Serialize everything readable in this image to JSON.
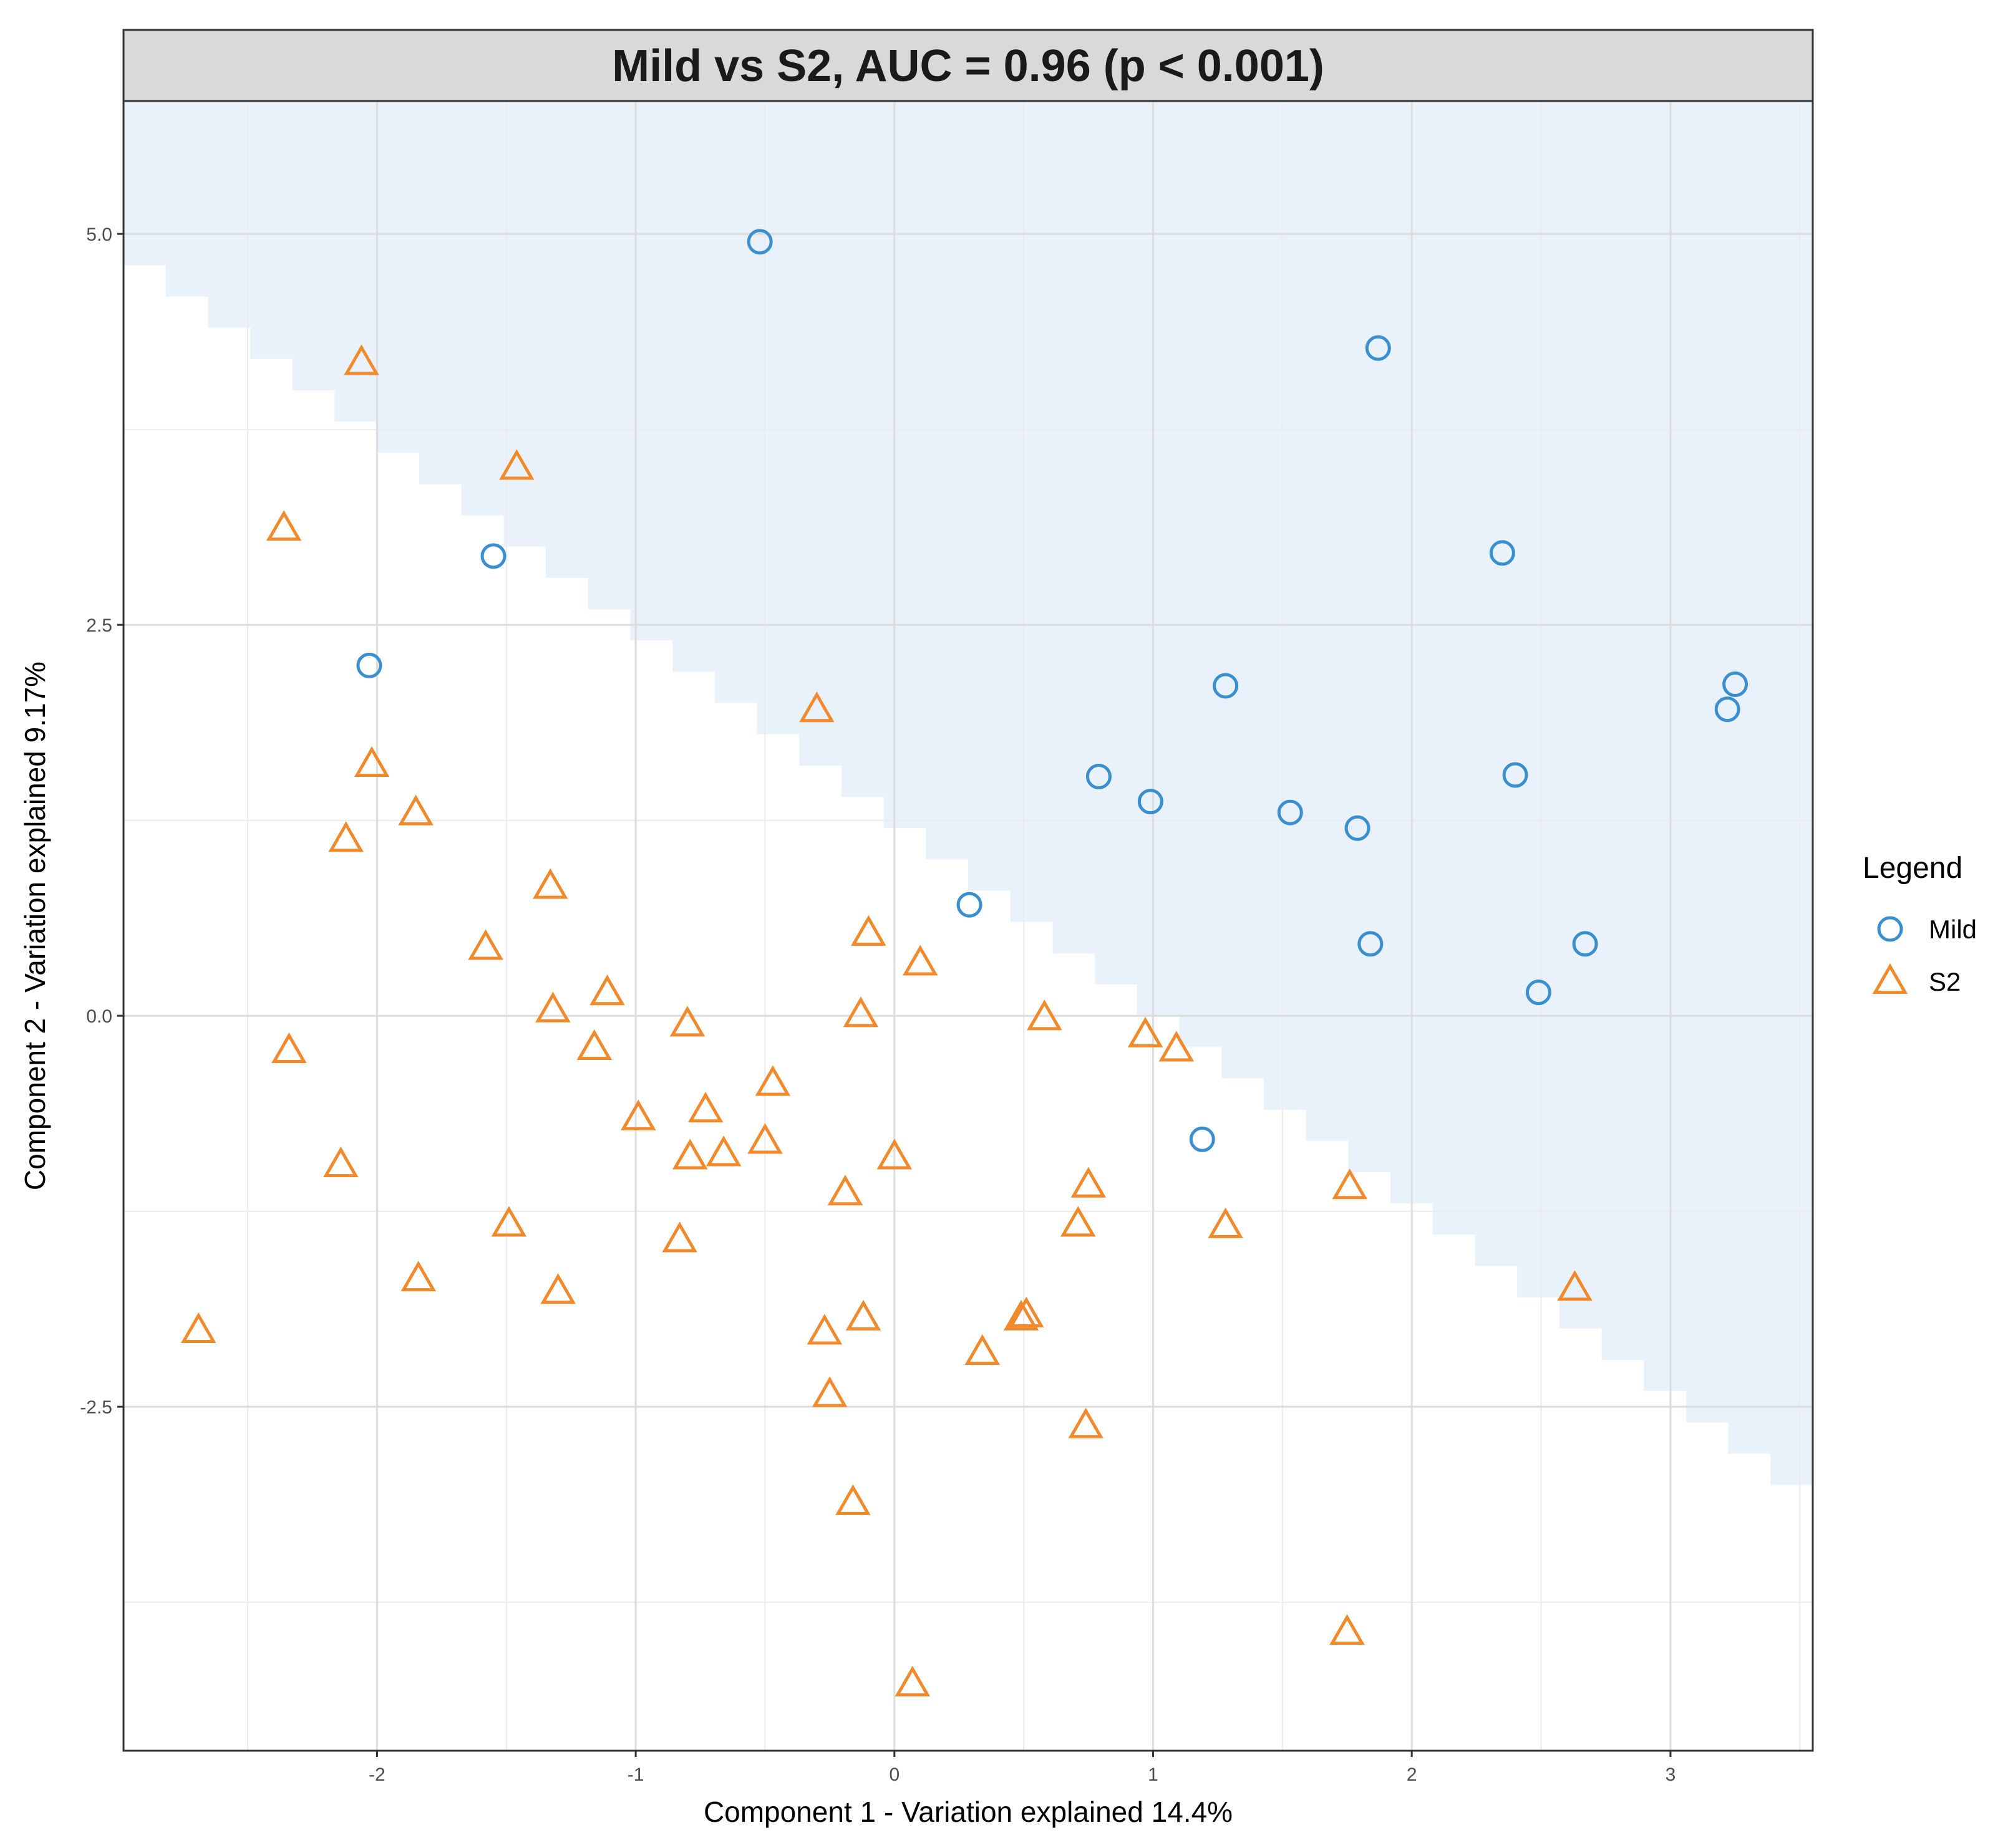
{
  "chart_data": {
    "type": "scatter",
    "title": "Mild vs S2, AUC = 0.96 (p < 0.001)",
    "xlabel": "Component 1 - Variation explained 14.4%",
    "ylabel": "Component 2 - Variation explained 9.17%",
    "xlim": [
      -2.98,
      3.55
    ],
    "ylim": [
      -4.7,
      5.85
    ],
    "x_ticks": [
      -2,
      -1,
      0,
      1,
      2,
      3
    ],
    "x_tick_labels": [
      "-2",
      "-1",
      "0",
      "1",
      "2",
      "3"
    ],
    "y_ticks": [
      -2.5,
      0.0,
      2.5,
      5.0
    ],
    "y_tick_labels": [
      "-2.5",
      "0.0",
      "2.5",
      "5.0"
    ],
    "grid": true,
    "legend_title": "Legend",
    "legend_position": "right",
    "decision_boundary": {
      "region_class": "Mild",
      "fill": "#e9f2fa",
      "line": [
        [
          -2.98,
          4.8
        ],
        [
          3.55,
          -3.2
        ]
      ]
    },
    "series": [
      {
        "name": "Mild",
        "marker": "circle",
        "color": "#3a8fd0",
        "points": [
          [
            -0.52,
            4.95
          ],
          [
            1.87,
            4.27
          ],
          [
            -1.55,
            2.94
          ],
          [
            2.35,
            2.96
          ],
          [
            -2.03,
            2.24
          ],
          [
            1.28,
            2.11
          ],
          [
            3.25,
            2.12
          ],
          [
            3.22,
            1.96
          ],
          [
            0.79,
            1.53
          ],
          [
            2.4,
            1.54
          ],
          [
            0.99,
            1.37
          ],
          [
            1.53,
            1.3
          ],
          [
            1.79,
            1.2
          ],
          [
            0.29,
            0.71
          ],
          [
            1.84,
            0.46
          ],
          [
            2.67,
            0.46
          ],
          [
            2.49,
            0.15
          ],
          [
            1.19,
            -0.79
          ]
        ]
      },
      {
        "name": "S2",
        "marker": "triangle",
        "color": "#f08a2c",
        "points": [
          [
            -2.06,
            4.17
          ],
          [
            -1.46,
            3.5
          ],
          [
            -2.36,
            3.11
          ],
          [
            -0.3,
            1.95
          ],
          [
            -2.02,
            1.6
          ],
          [
            -1.85,
            1.29
          ],
          [
            -2.12,
            1.12
          ],
          [
            -1.33,
            0.82
          ],
          [
            -0.1,
            0.52
          ],
          [
            0.1,
            0.33
          ],
          [
            -1.58,
            0.43
          ],
          [
            -1.11,
            0.14
          ],
          [
            -1.32,
            0.03
          ],
          [
            -0.13,
            0.0
          ],
          [
            0.58,
            -0.02
          ],
          [
            -0.8,
            -0.06
          ],
          [
            0.97,
            -0.13
          ],
          [
            1.09,
            -0.22
          ],
          [
            -2.34,
            -0.23
          ],
          [
            -1.16,
            -0.21
          ],
          [
            -0.47,
            -0.44
          ],
          [
            -0.73,
            -0.61
          ],
          [
            -0.99,
            -0.66
          ],
          [
            -0.5,
            -0.81
          ],
          [
            -0.66,
            -0.89
          ],
          [
            -0.79,
            -0.91
          ],
          [
            0.0,
            -0.91
          ],
          [
            -2.14,
            -0.96
          ],
          [
            0.75,
            -1.09
          ],
          [
            -0.19,
            -1.14
          ],
          [
            1.76,
            -1.1
          ],
          [
            0.71,
            -1.34
          ],
          [
            1.28,
            -1.35
          ],
          [
            -1.49,
            -1.34
          ],
          [
            -0.83,
            -1.44
          ],
          [
            -1.84,
            -1.69
          ],
          [
            -1.3,
            -1.77
          ],
          [
            2.63,
            -1.75
          ],
          [
            -2.69,
            -2.02
          ],
          [
            -0.27,
            -2.03
          ],
          [
            -0.12,
            -1.94
          ],
          [
            0.49,
            -1.94
          ],
          [
            0.51,
            -1.92
          ],
          [
            0.34,
            -2.16
          ],
          [
            -0.25,
            -2.43
          ],
          [
            0.74,
            -2.63
          ],
          [
            -0.16,
            -3.12
          ],
          [
            1.75,
            -3.95
          ],
          [
            0.07,
            -4.28
          ]
        ]
      }
    ]
  }
}
